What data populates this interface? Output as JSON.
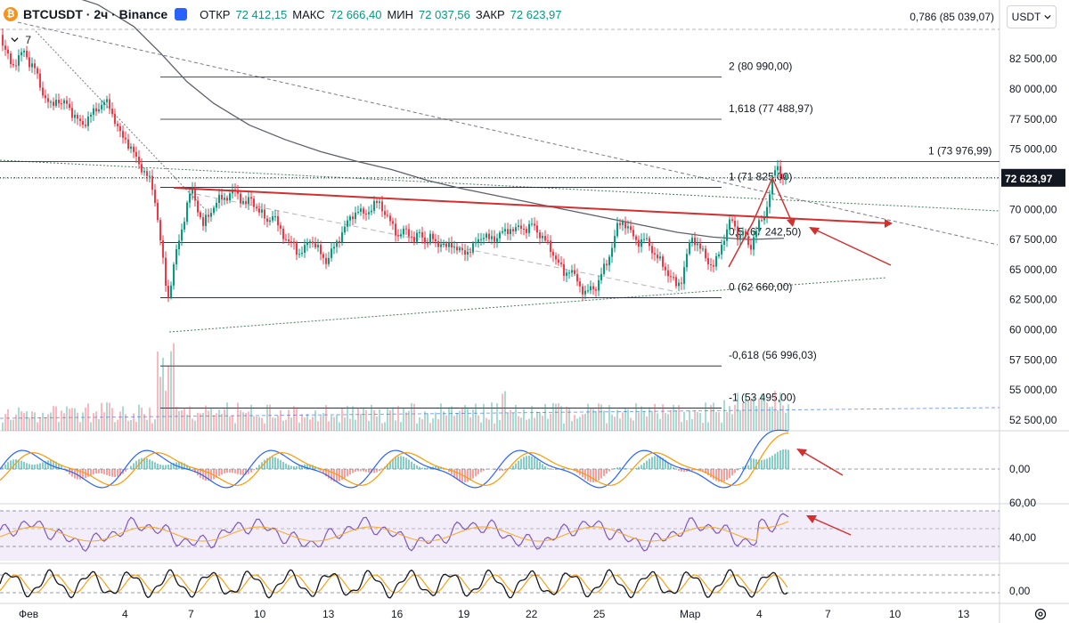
{
  "header": {
    "symbol": "BTCUSDT · 2ч · Binance",
    "open_label": "ОТКР",
    "open_value": "72 412,15",
    "high_label": "МАКС",
    "high_value": "72 666,40",
    "low_label": "МИН",
    "low_value": "72 037,56",
    "close_label": "ЗАКР",
    "close_value": "72 623,97"
  },
  "indicator_count": "7",
  "currency_button": "USDT",
  "top_fib_label": "0,786 (85 039,07)",
  "colors": {
    "up": "#089981",
    "down": "#f23645",
    "accent": "#2962ff",
    "price_tag": "#131722"
  },
  "chart_data": {
    "type": "candlestick",
    "price_axis": {
      "range": [
        51500,
        88000
      ],
      "ticks": [
        "82 500,00",
        "80 000,00",
        "77 500,00",
        "75 000,00",
        "70 000,00",
        "67 500,00",
        "65 000,00",
        "62 500,00",
        "60 000,00",
        "57 500,00",
        "55 000,00",
        "52 500,00"
      ],
      "last_price": "72 623,97"
    },
    "time_axis": {
      "labels": [
        "Фев",
        "4",
        "7",
        "10",
        "13",
        "16",
        "19",
        "22",
        "25",
        "Мар",
        "4",
        "7",
        "10",
        "13"
      ]
    },
    "fib_levels": [
      {
        "label": "2 (80 990,00)",
        "value": 80990
      },
      {
        "label": "1,618 (77 488,97)",
        "value": 77489
      },
      {
        "label": "1 (73 976,99)",
        "value": 73977
      },
      {
        "label": "1 (71 825,00)",
        "value": 71825
      },
      {
        "label": "0,5 (67 242,50)",
        "value": 67242.5
      },
      {
        "label": "0 (62 660,00)",
        "value": 62660
      },
      {
        "label": "-0,618 (56 996,03)",
        "value": 56996
      },
      {
        "label": "-1 (53 495,00)",
        "value": 53495
      }
    ],
    "price_path": [
      [
        0,
        84500
      ],
      [
        4,
        83600
      ],
      [
        8,
        82800
      ],
      [
        12,
        82300
      ],
      [
        16,
        82000
      ],
      [
        22,
        82600
      ],
      [
        28,
        83200
      ],
      [
        34,
        82100
      ],
      [
        40,
        81600
      ],
      [
        46,
        80200
      ],
      [
        52,
        79100
      ],
      [
        58,
        78500
      ],
      [
        64,
        79300
      ],
      [
        70,
        78600
      ],
      [
        76,
        78900
      ],
      [
        82,
        77900
      ],
      [
        88,
        77300
      ],
      [
        94,
        77100
      ],
      [
        100,
        77600
      ],
      [
        106,
        78100
      ],
      [
        112,
        78600
      ],
      [
        118,
        78900
      ],
      [
        124,
        78500
      ],
      [
        130,
        77300
      ],
      [
        136,
        76100
      ],
      [
        142,
        75800
      ],
      [
        148,
        75000
      ],
      [
        154,
        74100
      ],
      [
        160,
        73400
      ],
      [
        166,
        72700
      ],
      [
        170,
        72200
      ],
      [
        174,
        71000
      ],
      [
        178,
        69000
      ],
      [
        182,
        66500
      ],
      [
        186,
        64000
      ],
      [
        189,
        62500
      ],
      [
        192,
        63800
      ],
      [
        196,
        65600
      ],
      [
        200,
        66900
      ],
      [
        204,
        68100
      ],
      [
        208,
        69600
      ],
      [
        212,
        71000
      ],
      [
        216,
        71600
      ],
      [
        220,
        70600
      ],
      [
        224,
        69800
      ],
      [
        228,
        68600
      ],
      [
        232,
        69200
      ],
      [
        236,
        69600
      ],
      [
        240,
        70300
      ],
      [
        246,
        70800
      ],
      [
        252,
        70900
      ],
      [
        258,
        71300
      ],
      [
        264,
        71500
      ],
      [
        270,
        71000
      ],
      [
        276,
        70400
      ],
      [
        282,
        70900
      ],
      [
        288,
        70200
      ],
      [
        294,
        69600
      ],
      [
        300,
        69000
      ],
      [
        306,
        69600
      ],
      [
        312,
        68700
      ],
      [
        318,
        68000
      ],
      [
        324,
        67200
      ],
      [
        330,
        67100
      ],
      [
        336,
        66300
      ],
      [
        342,
        66600
      ],
      [
        348,
        67600
      ],
      [
        354,
        67100
      ],
      [
        360,
        66300
      ],
      [
        366,
        65700
      ],
      [
        372,
        66400
      ],
      [
        378,
        67100
      ],
      [
        384,
        68100
      ],
      [
        390,
        68800
      ],
      [
        396,
        69500
      ],
      [
        402,
        70000
      ],
      [
        408,
        69500
      ],
      [
        414,
        69900
      ],
      [
        420,
        70300
      ],
      [
        426,
        70600
      ],
      [
        430,
        70100
      ],
      [
        436,
        69200
      ],
      [
        442,
        68500
      ],
      [
        448,
        67800
      ],
      [
        454,
        68200
      ],
      [
        460,
        68000
      ],
      [
        466,
        67500
      ],
      [
        472,
        68000
      ],
      [
        478,
        67300
      ],
      [
        484,
        67700
      ],
      [
        490,
        67100
      ],
      [
        496,
        67300
      ],
      [
        502,
        66700
      ],
      [
        508,
        67200
      ],
      [
        514,
        66700
      ],
      [
        520,
        66300
      ],
      [
        526,
        66600
      ],
      [
        532,
        66900
      ],
      [
        538,
        67500
      ],
      [
        544,
        68000
      ],
      [
        550,
        67400
      ],
      [
        556,
        67600
      ],
      [
        562,
        68100
      ],
      [
        568,
        68000
      ],
      [
        574,
        68500
      ],
      [
        580,
        68300
      ],
      [
        586,
        68500
      ],
      [
        592,
        68400
      ],
      [
        598,
        68700
      ],
      [
        604,
        68200
      ],
      [
        610,
        67600
      ],
      [
        616,
        67000
      ],
      [
        622,
        66300
      ],
      [
        628,
        65400
      ],
      [
        634,
        64600
      ],
      [
        640,
        65100
      ],
      [
        646,
        64300
      ],
      [
        652,
        63600
      ],
      [
        658,
        63000
      ],
      [
        664,
        63400
      ],
      [
        670,
        63600
      ],
      [
        676,
        64700
      ],
      [
        682,
        65600
      ],
      [
        688,
        67100
      ],
      [
        694,
        68600
      ],
      [
        700,
        69100
      ],
      [
        706,
        68400
      ],
      [
        712,
        67600
      ],
      [
        718,
        67300
      ],
      [
        724,
        67500
      ],
      [
        730,
        67000
      ],
      [
        736,
        66200
      ],
      [
        742,
        65600
      ],
      [
        748,
        65000
      ],
      [
        754,
        64300
      ],
      [
        760,
        63600
      ],
      [
        766,
        64300
      ],
      [
        770,
        65600
      ],
      [
        774,
        67000
      ],
      [
        778,
        67700
      ],
      [
        782,
        67300
      ],
      [
        786,
        66800
      ],
      [
        790,
        66300
      ],
      [
        794,
        65800
      ],
      [
        798,
        65500
      ],
      [
        802,
        65300
      ],
      [
        806,
        65900
      ],
      [
        810,
        67000
      ],
      [
        814,
        67800
      ],
      [
        818,
        68700
      ],
      [
        822,
        69100
      ],
      [
        826,
        68400
      ],
      [
        830,
        67600
      ],
      [
        834,
        68200
      ],
      [
        838,
        67400
      ],
      [
        842,
        66700
      ],
      [
        846,
        67600
      ],
      [
        850,
        68400
      ],
      [
        854,
        68900
      ],
      [
        858,
        69400
      ],
      [
        862,
        70500
      ],
      [
        866,
        71900
      ],
      [
        870,
        73200
      ],
      [
        874,
        73600
      ],
      [
        878,
        72600
      ],
      [
        882,
        72620
      ]
    ],
    "sma_path": [
      [
        0,
        89000
      ],
      [
        60,
        88200
      ],
      [
        110,
        87000
      ],
      [
        150,
        85200
      ],
      [
        180,
        83000
      ],
      [
        210,
        80600
      ],
      [
        240,
        78800
      ],
      [
        280,
        77000
      ],
      [
        320,
        75800
      ],
      [
        360,
        74800
      ],
      [
        400,
        74000
      ],
      [
        440,
        73300
      ],
      [
        480,
        72400
      ],
      [
        520,
        71700
      ],
      [
        560,
        71100
      ],
      [
        600,
        70500
      ],
      [
        640,
        69900
      ],
      [
        680,
        69300
      ],
      [
        720,
        68700
      ],
      [
        760,
        68100
      ],
      [
        800,
        67700
      ],
      [
        840,
        67500
      ],
      [
        880,
        67600
      ]
    ],
    "macd_zero": "0,00",
    "rsi_levels": [
      "60,00",
      "40,00"
    ],
    "stoch_zero": "0,00"
  }
}
